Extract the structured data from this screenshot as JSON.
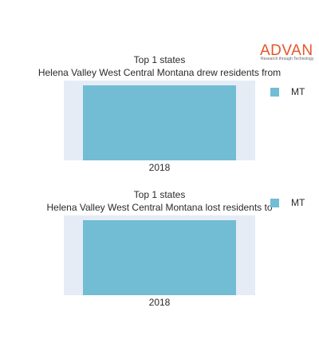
{
  "brand": {
    "name": "ADVAN",
    "tagline": "Research through Technology",
    "color": "#e8542a"
  },
  "colors": {
    "bar": "#72bcd4",
    "plot_bg": "#e5ecf6"
  },
  "chart_data": [
    {
      "type": "bar",
      "title": "Top 1 states",
      "subtitle": "Helena Valley West Central Montana drew residents from",
      "categories": [
        "2018"
      ],
      "series": [
        {
          "name": "MT",
          "values": [
            1
          ]
        }
      ],
      "legend": "top-right",
      "ylim": [
        0,
        1
      ],
      "grid": false
    },
    {
      "type": "bar",
      "title": "Top 1 states",
      "subtitle": "Helena Valley West Central Montana lost residents to",
      "categories": [
        "2018"
      ],
      "series": [
        {
          "name": "MT",
          "values": [
            1
          ]
        }
      ],
      "legend": "top-right",
      "ylim": [
        0,
        1
      ],
      "grid": false
    }
  ]
}
